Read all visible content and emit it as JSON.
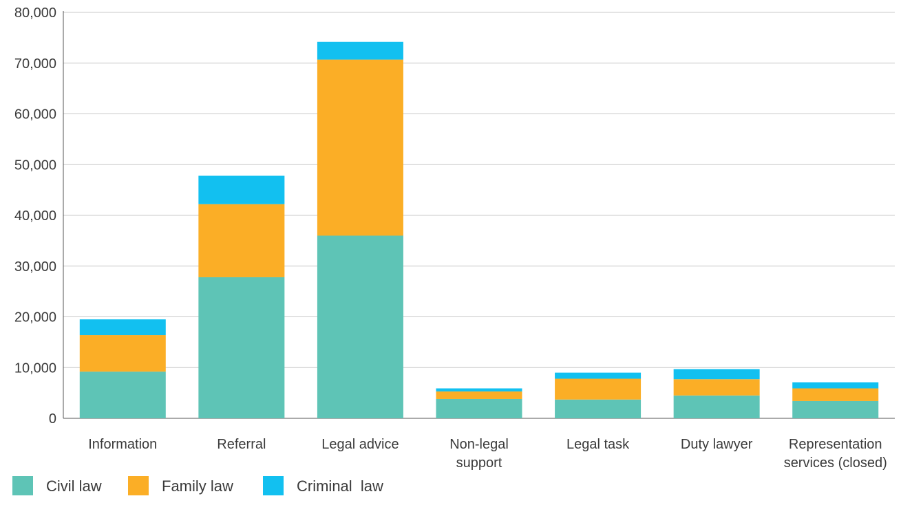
{
  "chart_data": {
    "type": "bar",
    "stacked": true,
    "categories": [
      [
        "Information"
      ],
      [
        "Referral"
      ],
      [
        "Legal advice"
      ],
      [
        "Non-legal",
        "support"
      ],
      [
        "Legal task"
      ],
      [
        "Duty lawyer"
      ],
      [
        "Representation",
        "services (closed)"
      ]
    ],
    "series": [
      {
        "name": "Civil law",
        "color": "#5ec4b6",
        "values": [
          9200,
          27800,
          36000,
          3800,
          3700,
          4500,
          3400
        ]
      },
      {
        "name": "Family law",
        "color": "#fbae26",
        "values": [
          7200,
          14400,
          34700,
          1500,
          4100,
          3200,
          2500
        ]
      },
      {
        "name": "Criminal  law",
        "color": "#12c0f0",
        "values": [
          3100,
          5600,
          3500,
          600,
          1200,
          2000,
          1200
        ]
      }
    ],
    "ylim": [
      0,
      80000
    ],
    "yticks": [
      0,
      10000,
      20000,
      30000,
      40000,
      50000,
      60000,
      70000,
      80000
    ],
    "ytick_labels": [
      "0",
      "10,000",
      "20,000",
      "30,000",
      "40,000",
      "50,000",
      "60,000",
      "70,000",
      "80,000"
    ],
    "grid": true,
    "legend_position": "bottom-left",
    "title": "",
    "xlabel": "",
    "ylabel": ""
  }
}
